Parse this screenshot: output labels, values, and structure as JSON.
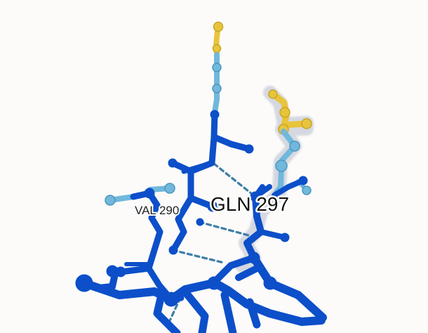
{
  "structure": {
    "labels": {
      "val_290": "VAL 290",
      "gln_297": "GLN 297"
    },
    "colors": {
      "background": "#fcfbfa",
      "very_high_confidence": "#0c4fc9",
      "high_confidence": "#70b8dc",
      "low_confidence": "#e8c43d",
      "highlight_glow": "#cfd3dd",
      "hbond": "#3e7da6"
    }
  }
}
